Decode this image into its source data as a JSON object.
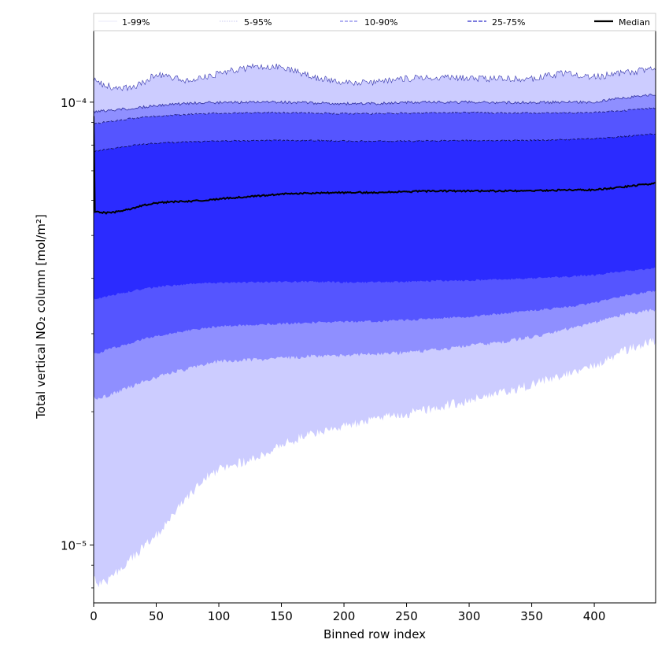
{
  "chart_data": {
    "type": "area",
    "title": "",
    "xlabel": "Binned row index",
    "ylabel": "Total vertical NO₂ column [mol/m²]",
    "xlim": [
      0,
      449
    ],
    "ylim": [
      7.4e-06,
      0.000145
    ],
    "yscale": "log",
    "x_ticks": [
      0,
      50,
      100,
      150,
      200,
      250,
      300,
      350,
      400
    ],
    "y_ticks": [
      {
        "value": 1e-05,
        "label": "10⁻⁵"
      },
      {
        "value": 0.0001,
        "label": "10⁻⁴"
      }
    ],
    "grid": false,
    "legend_position": "top",
    "colors": {
      "band_1_99": "#ccccff",
      "band_5_95": "#8f8fff",
      "band_10_90": "#5555ff",
      "band_25_75": "#2b2bff",
      "median": "#000000"
    },
    "x": [
      0,
      1,
      5,
      10,
      20,
      30,
      40,
      50,
      60,
      75,
      90,
      100,
      125,
      150,
      175,
      200,
      225,
      250,
      275,
      300,
      325,
      350,
      375,
      400,
      420,
      449
    ],
    "series": [
      {
        "name": "1-99%",
        "band": "1-99",
        "lower": [
          8.5e-06,
          8.3e-06,
          8.2e-06,
          8.2e-06,
          8.8e-06,
          9.3e-06,
          9.9e-06,
          1.05e-05,
          1.15e-05,
          1.28e-05,
          1.42e-05,
          1.48e-05,
          1.56e-05,
          1.68e-05,
          1.79e-05,
          1.85e-05,
          1.92e-05,
          1.98e-05,
          2.05e-05,
          2.12e-05,
          2.2e-05,
          2.3e-05,
          2.42e-05,
          2.54e-05,
          2.72e-05,
          2.9e-05
        ],
        "upper": [
          0.000113,
          0.000112,
          0.00011,
          0.000109,
          0.000107,
          0.000108,
          0.000111,
          0.000116,
          0.000114,
          0.000112,
          0.000114,
          0.000116,
          0.00012,
          0.00012,
          0.000114,
          0.000111,
          0.000111,
          0.000113,
          0.000114,
          0.000113,
          0.000113,
          0.000113,
          0.000116,
          0.000114,
          0.000116,
          0.000119
        ]
      },
      {
        "name": "5-95%",
        "band": "5-95",
        "lower": [
          2.17e-05,
          2.15e-05,
          2.15e-05,
          2.17e-05,
          2.22e-05,
          2.28e-05,
          2.34e-05,
          2.39e-05,
          2.44e-05,
          2.5e-05,
          2.56e-05,
          2.6e-05,
          2.62e-05,
          2.64e-05,
          2.67e-05,
          2.68e-05,
          2.7e-05,
          2.72e-05,
          2.76e-05,
          2.82e-05,
          2.87e-05,
          2.95e-05,
          3.06e-05,
          3.18e-05,
          3.3e-05,
          3.4e-05
        ],
        "upper": [
          9.52e-05,
          9.52e-05,
          9.55e-05,
          9.58e-05,
          9.62e-05,
          9.68e-05,
          9.75e-05,
          9.82e-05,
          9.87e-05,
          9.93e-05,
          9.97e-05,
          9.98e-05,
          0.0001,
          0.0001,
          9.96e-05,
          9.92e-05,
          9.93e-05,
          9.98e-05,
          0.0001,
          0.0001,
          9.98e-05,
          9.98e-05,
          0.0001,
          0.0001,
          0.000102,
          0.000104
        ]
      },
      {
        "name": "10-90%",
        "band": "10-90",
        "lower": [
          2.72e-05,
          2.71e-05,
          2.72e-05,
          2.76e-05,
          2.8e-05,
          2.86e-05,
          2.92e-05,
          2.96e-05,
          3e-05,
          3.05e-05,
          3.09e-05,
          3.12e-05,
          3.14e-05,
          3.16e-05,
          3.18e-05,
          3.19e-05,
          3.2e-05,
          3.22e-05,
          3.25e-05,
          3.28e-05,
          3.33e-05,
          3.38e-05,
          3.44e-05,
          3.52e-05,
          3.64e-05,
          3.75e-05
        ],
        "upper": [
          8.95e-05,
          8.95e-05,
          8.98e-05,
          9.02e-05,
          9.1e-05,
          9.18e-05,
          9.25e-05,
          9.3e-05,
          9.34e-05,
          9.38e-05,
          9.42e-05,
          9.44e-05,
          9.46e-05,
          9.47e-05,
          9.45e-05,
          9.42e-05,
          9.42e-05,
          9.44e-05,
          9.46e-05,
          9.47e-05,
          9.45e-05,
          9.45e-05,
          9.46e-05,
          9.48e-05,
          9.55e-05,
          9.7e-05
        ]
      },
      {
        "name": "25-75%",
        "band": "25-75",
        "lower": [
          3.6e-05,
          3.6e-05,
          3.61e-05,
          3.64e-05,
          3.69e-05,
          3.74e-05,
          3.79e-05,
          3.82e-05,
          3.85e-05,
          3.88e-05,
          3.9e-05,
          3.91e-05,
          3.92e-05,
          3.93e-05,
          3.93e-05,
          3.92e-05,
          3.92e-05,
          3.93e-05,
          3.95e-05,
          3.96e-05,
          3.98e-05,
          4e-05,
          4.03e-05,
          4.07e-05,
          4.14e-05,
          4.22e-05
        ],
        "upper": [
          7.75e-05,
          7.75e-05,
          7.78e-05,
          7.82e-05,
          7.9e-05,
          7.98e-05,
          8.04e-05,
          8.08e-05,
          8.1e-05,
          8.13e-05,
          8.15e-05,
          8.17e-05,
          8.18e-05,
          8.2e-05,
          8.19e-05,
          8.17e-05,
          8.16e-05,
          8.17e-05,
          8.18e-05,
          8.19e-05,
          8.19e-05,
          8.2e-05,
          8.23e-05,
          8.27e-05,
          8.35e-05,
          8.48e-05
        ]
      },
      {
        "name": "Median",
        "values": [
          9.3e-05,
          5.65e-05,
          5.64e-05,
          5.62e-05,
          5.66e-05,
          5.74e-05,
          5.85e-05,
          5.92e-05,
          5.95e-05,
          5.97e-05,
          6e-05,
          6.05e-05,
          6.12e-05,
          6.2e-05,
          6.23e-05,
          6.25e-05,
          6.25e-05,
          6.28e-05,
          6.3e-05,
          6.3e-05,
          6.3e-05,
          6.31e-05,
          6.33e-05,
          6.34e-05,
          6.42e-05,
          6.56e-05
        ]
      }
    ]
  },
  "legend": [
    {
      "label": "1-99%",
      "color": "#e0e0f6",
      "dash": "none",
      "width": 0.8
    },
    {
      "label": "5-95%",
      "color": "#b9b9ea",
      "dash": "1.5,1.5",
      "width": 0.8
    },
    {
      "label": "10-90%",
      "color": "#8484ea",
      "dash": "4,2",
      "width": 1.2
    },
    {
      "label": "25-75%",
      "color": "#5050d4",
      "dash": "5,2",
      "width": 1.4
    },
    {
      "label": "Median",
      "color": "#000000",
      "dash": "none",
      "width": 2.2
    }
  ]
}
